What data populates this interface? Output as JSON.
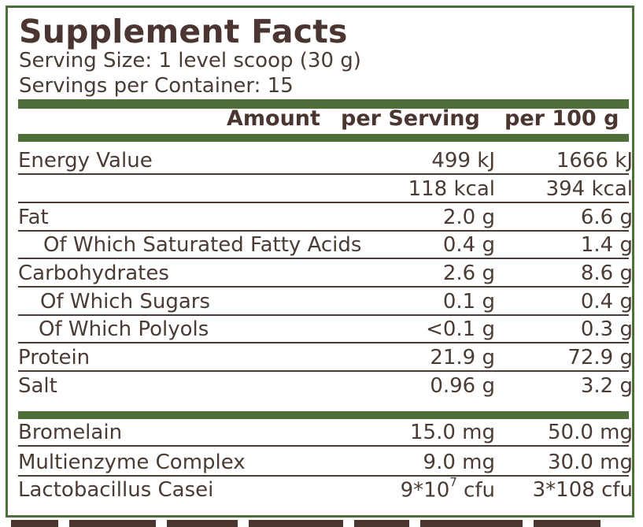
{
  "header": {
    "title": "Supplement Facts",
    "serving_size": "Serving Size: 1 level scoop (30 g)",
    "servings_per_container": "Servings per Container: 15"
  },
  "columns": {
    "amount": "Amount",
    "per_serving": "per Serving",
    "per_100g": "per 100 g"
  },
  "rows": [
    {
      "label": "Energy Value",
      "per_serving": "499 kJ",
      "per_100g": "1666 kJ"
    },
    {
      "label": "",
      "per_serving": "118 kcal",
      "per_100g": "394 kcal"
    },
    {
      "label": "Fat",
      "per_serving": "2.0 g",
      "per_100g": "6.6 g"
    },
    {
      "label": "Of Which Saturated Fatty Acids",
      "per_serving": "0.4 g",
      "per_100g": "1.4 g"
    },
    {
      "label": "Carbohydrates",
      "per_serving": "2.6 g",
      "per_100g": "8.6 g"
    },
    {
      "label": "Of Which Sugars",
      "per_serving": "0.1 g",
      "per_100g": "0.4 g"
    },
    {
      "label": "Of Which Polyols",
      "per_serving": "<0.1 g",
      "per_100g": "0.3 g"
    },
    {
      "label": "Protein",
      "per_serving": "21.9 g",
      "per_100g": "72.9 g"
    },
    {
      "label": "Salt",
      "per_serving": "0.96 g",
      "per_100g": "3.2 g"
    }
  ],
  "extras": [
    {
      "label": "Bromelain",
      "per_serving": "15.0 mg",
      "per_100g": "50.0 mg"
    },
    {
      "label": "Multienzyme Complex",
      "per_serving": "9.0 mg",
      "per_100g": "30.0 mg"
    },
    {
      "label": "Lactobacillus Casei",
      "per_serving_base": "9*10",
      "per_serving_exp": "7",
      "per_serving_unit": " cfu",
      "per_100g": "3*108 cfu"
    }
  ],
  "colors": {
    "brand_green": "#4e6e3a",
    "text_brown": "#4a3b34"
  }
}
